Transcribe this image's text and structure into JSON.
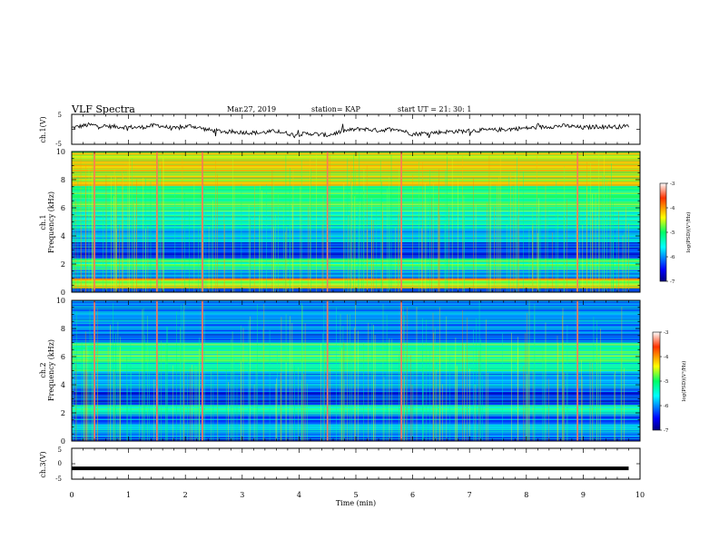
{
  "header": {
    "title": "VLF Spectra",
    "date": "Mar.27, 2019",
    "station": "station= KAP",
    "start": "start  UT =   21: 30: 1"
  },
  "chart_data": [
    {
      "type": "line",
      "panel": "ch1-waveform",
      "ylabel": "ch.1(V)",
      "ylim": [
        -5,
        5
      ],
      "y_ticks": [
        "5",
        "-5"
      ],
      "xlim": [
        0,
        10
      ],
      "x": [
        0.0,
        0.3,
        0.6,
        0.9,
        1.2,
        1.5,
        1.8,
        2.1,
        2.4,
        2.7,
        3.0,
        3.3,
        3.6,
        3.9,
        4.2,
        4.5,
        4.8,
        5.1,
        5.4,
        5.7,
        6.0,
        6.3,
        6.6,
        6.9,
        7.2,
        7.5,
        7.8,
        8.1,
        8.4,
        8.7,
        9.0,
        9.3,
        9.6,
        9.8
      ],
      "y": [
        0.5,
        1.5,
        1.0,
        0.8,
        0.6,
        1.4,
        0.2,
        1.2,
        -0.2,
        -0.8,
        -1.0,
        -1.2,
        -0.6,
        -1.8,
        -1.4,
        -2.0,
        -0.5,
        0.2,
        -0.4,
        0.3,
        -1.6,
        -1.2,
        -0.8,
        -0.6,
        -0.3,
        -0.2,
        0.2,
        0.5,
        0.9,
        1.2,
        0.5,
        1.0,
        0.8,
        1.1
      ]
    },
    {
      "type": "heatmap",
      "panel": "ch1-spectrogram",
      "channel_label": "ch.1",
      "ylabel": "Frequency  (kHz)",
      "ylim": [
        0,
        10
      ],
      "y_ticks": [
        "0",
        "2",
        "4",
        "6",
        "8",
        "10"
      ],
      "xlim": [
        0,
        10
      ],
      "colorbar": {
        "label": "log(PSD)(V²/Hz)",
        "range": [
          -7,
          -3
        ],
        "ticks": [
          "-3",
          "-4",
          "-5",
          "-6",
          "-7"
        ]
      },
      "bright_bursts_min": [
        0.4,
        1.5,
        2.3,
        4.5,
        5.8,
        8.9
      ],
      "bands": [
        {
          "freq_khz": [
            0,
            0.3
          ],
          "log_psd": -6.5
        },
        {
          "freq_khz": [
            0.3,
            1.0
          ],
          "log_psd": -4.5
        },
        {
          "freq_khz": [
            1.0,
            1.6
          ],
          "log_psd": -6.0
        },
        {
          "freq_khz": [
            1.6,
            2.4
          ],
          "log_psd": -5.2
        },
        {
          "freq_khz": [
            2.4,
            3.6
          ],
          "log_psd": -6.3
        },
        {
          "freq_khz": [
            3.6,
            4.6
          ],
          "log_psd": -5.8
        },
        {
          "freq_khz": [
            4.6,
            5.8
          ],
          "log_psd": -5.4
        },
        {
          "freq_khz": [
            5.8,
            7.6
          ],
          "log_psd": -5.0
        },
        {
          "freq_khz": [
            7.6,
            10
          ],
          "log_psd": -4.3
        }
      ]
    },
    {
      "type": "heatmap",
      "panel": "ch2-spectrogram",
      "channel_label": "ch.2",
      "ylabel": "Frequency  (kHz)",
      "ylim": [
        0,
        10
      ],
      "y_ticks": [
        "0",
        "2",
        "4",
        "6",
        "8",
        "10"
      ],
      "xlim": [
        0,
        10
      ],
      "colorbar": {
        "label": "log(PSD)(V²/Hz)",
        "range": [
          -7,
          -3
        ],
        "ticks": [
          "-3",
          "-4",
          "-5",
          "-6",
          "-7"
        ]
      },
      "bright_bursts_min": [
        0.4,
        1.5,
        2.3,
        4.5,
        5.8,
        8.9
      ],
      "bands": [
        {
          "freq_khz": [
            0,
            0.3
          ],
          "log_psd": -6.4
        },
        {
          "freq_khz": [
            0.3,
            1.2
          ],
          "log_psd": -5.8
        },
        {
          "freq_khz": [
            1.2,
            1.8
          ],
          "log_psd": -6.3
        },
        {
          "freq_khz": [
            1.8,
            2.6
          ],
          "log_psd": -5.3
        },
        {
          "freq_khz": [
            2.6,
            3.8
          ],
          "log_psd": -6.3
        },
        {
          "freq_khz": [
            3.8,
            5.0
          ],
          "log_psd": -5.8
        },
        {
          "freq_khz": [
            5.0,
            7.0
          ],
          "log_psd": -5.2
        },
        {
          "freq_khz": [
            7.0,
            10
          ],
          "log_psd": -6.0
        }
      ]
    },
    {
      "type": "line",
      "panel": "ch3-waveform",
      "ylabel": "ch.3(V)",
      "ylim": [
        -5,
        5
      ],
      "y_ticks": [
        "5",
        "0",
        "-5"
      ],
      "xlim": [
        0,
        10
      ],
      "xlabel": "Time  (min)",
      "x_ticks": [
        "0",
        "1",
        "2",
        "3",
        "4",
        "5",
        "6",
        "7",
        "8",
        "9",
        "10"
      ],
      "x": [
        0,
        9.8
      ],
      "y": [
        -1.5,
        -1.5
      ]
    }
  ]
}
